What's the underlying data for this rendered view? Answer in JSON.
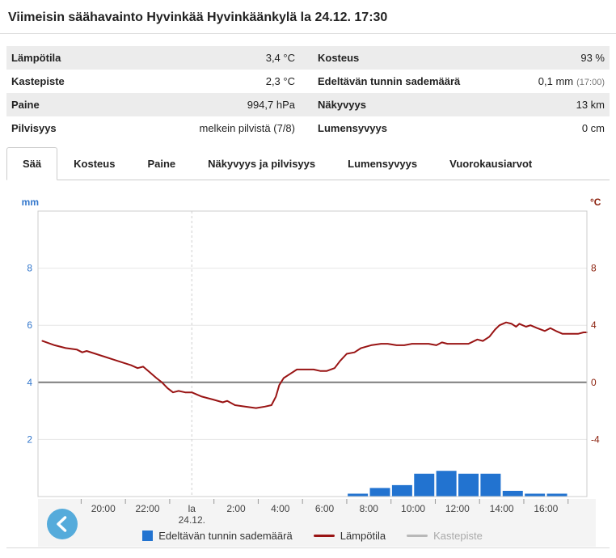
{
  "header": {
    "title": "Viimeisin säähavainto Hyvinkää Hyvinkäänkylä la 24.12. 17:30"
  },
  "observations": {
    "rows": [
      {
        "l1": "Lämpötila",
        "v1": "3,4 °C",
        "l2": "Kosteus",
        "v2": "93 %",
        "v2_note": ""
      },
      {
        "l1": "Kastepiste",
        "v1": "2,3 °C",
        "l2": "Edeltävän tunnin sademäärä",
        "v2": "0,1 mm",
        "v2_note": "(17:00)"
      },
      {
        "l1": "Paine",
        "v1": "994,7 hPa",
        "l2": "Näkyvyys",
        "v2": "13 km",
        "v2_note": ""
      },
      {
        "l1": "Pilvisyys",
        "v1": "melkein pilvistä (7/8)",
        "l2": "Lumensyvyys",
        "v2": "0 cm",
        "v2_note": ""
      }
    ]
  },
  "tabs": [
    {
      "label": "Sää",
      "active": true
    },
    {
      "label": "Kosteus",
      "active": false
    },
    {
      "label": "Paine",
      "active": false
    },
    {
      "label": "Näkyvyys ja pilvisyys",
      "active": false
    },
    {
      "label": "Lumensyvyys",
      "active": false
    },
    {
      "label": "Vuorokausiarvot",
      "active": false
    }
  ],
  "legend": [
    {
      "label": "Edeltävän tunnin sademäärä",
      "swatch": "square",
      "color": "#2273d0",
      "disabled": false
    },
    {
      "label": "Lämpötila",
      "swatch": "line",
      "color": "#991414",
      "disabled": false
    },
    {
      "label": "Kastepiste",
      "swatch": "line",
      "color": "#b8b8b8",
      "disabled": true
    }
  ],
  "colors": {
    "bar_blue": "#2273d0",
    "temp_red": "#991414",
    "dewpoint_gray": "#b8b8b8",
    "axis_left_blue": "#3377cc",
    "axis_right_red": "#8a1e0a",
    "grid": "#e6e6e6",
    "zero_line": "#7d7d7d",
    "midnight_dash": "#cfcfcf",
    "strip_bg": "#f4f4f4",
    "tick_text": "#444",
    "button_blue": "#55abdb"
  },
  "chart_data": {
    "type": "bar+line",
    "title": "",
    "x_axis": {
      "start": 17.05,
      "end": 41.85,
      "note": "t = hours since day-1 00:00; 24 = midnight la 24.12.",
      "ticks": [
        {
          "t": 20,
          "l1": "20:00",
          "l2": ""
        },
        {
          "t": 22,
          "l1": "22:00",
          "l2": ""
        },
        {
          "t": 24,
          "l1": "la",
          "l2": "24.12."
        },
        {
          "t": 26,
          "l1": "2:00",
          "l2": ""
        },
        {
          "t": 28,
          "l1": "4:00",
          "l2": ""
        },
        {
          "t": 30,
          "l1": "6:00",
          "l2": ""
        },
        {
          "t": 32,
          "l1": "8:00",
          "l2": ""
        },
        {
          "t": 34,
          "l1": "10:00",
          "l2": ""
        },
        {
          "t": 36,
          "l1": "12:00",
          "l2": ""
        },
        {
          "t": 38,
          "l1": "14:00",
          "l2": ""
        },
        {
          "t": 40,
          "l1": "16:00",
          "l2": ""
        }
      ],
      "minor_ticks": [
        19,
        21,
        23,
        25,
        27,
        29,
        31,
        33,
        35,
        37,
        39,
        41
      ],
      "midnight_line_t": 24
    },
    "y_left": {
      "label": "mm",
      "min": 0,
      "max": 10,
      "ticks": [
        2,
        4,
        6,
        8
      ]
    },
    "y_right": {
      "label": "°C",
      "min": -8,
      "max": 12,
      "ticks": [
        -4,
        0,
        4,
        8
      ],
      "zero_at": 0
    },
    "series": [
      {
        "name": "Edeltävän tunnin sademäärä",
        "type": "bar",
        "unit": "mm",
        "axis": "left",
        "points": [
          {
            "hour_end": "8:00",
            "t_end": 32,
            "v": 0.1
          },
          {
            "hour_end": "9:00",
            "t_end": 33,
            "v": 0.3
          },
          {
            "hour_end": "10:00",
            "t_end": 34,
            "v": 0.4
          },
          {
            "hour_end": "11:00",
            "t_end": 35,
            "v": 0.8
          },
          {
            "hour_end": "12:00",
            "t_end": 36,
            "v": 0.9
          },
          {
            "hour_end": "13:00",
            "t_end": 37,
            "v": 0.8
          },
          {
            "hour_end": "14:00",
            "t_end": 38,
            "v": 0.8
          },
          {
            "hour_end": "15:00",
            "t_end": 39,
            "v": 0.2
          },
          {
            "hour_end": "16:00",
            "t_end": 40,
            "v": 0.1
          },
          {
            "hour_end": "17:00",
            "t_end": 41,
            "v": 0.1
          }
        ]
      },
      {
        "name": "Lämpötila",
        "type": "line",
        "unit": "°C",
        "axis": "right",
        "points": [
          [
            17.25,
            2.9
          ],
          [
            17.8,
            2.6
          ],
          [
            18.3,
            2.4
          ],
          [
            18.8,
            2.3
          ],
          [
            19.05,
            2.1
          ],
          [
            19.25,
            2.2
          ],
          [
            19.65,
            2.0
          ],
          [
            20.05,
            1.8
          ],
          [
            20.45,
            1.6
          ],
          [
            20.85,
            1.4
          ],
          [
            21.25,
            1.2
          ],
          [
            21.55,
            1.0
          ],
          [
            21.8,
            1.1
          ],
          [
            22.1,
            0.7
          ],
          [
            22.4,
            0.3
          ],
          [
            22.65,
            0.0
          ],
          [
            22.9,
            -0.4
          ],
          [
            23.15,
            -0.7
          ],
          [
            23.4,
            -0.6
          ],
          [
            23.7,
            -0.7
          ],
          [
            24.0,
            -0.7
          ],
          [
            24.45,
            -1.0
          ],
          [
            24.95,
            -1.2
          ],
          [
            25.4,
            -1.4
          ],
          [
            25.6,
            -1.3
          ],
          [
            25.95,
            -1.6
          ],
          [
            26.4,
            -1.7
          ],
          [
            26.9,
            -1.8
          ],
          [
            27.3,
            -1.7
          ],
          [
            27.6,
            -1.6
          ],
          [
            27.8,
            -1.0
          ],
          [
            27.95,
            -0.2
          ],
          [
            28.15,
            0.3
          ],
          [
            28.45,
            0.6
          ],
          [
            28.75,
            0.9
          ],
          [
            29.2,
            0.9
          ],
          [
            29.5,
            0.9
          ],
          [
            29.8,
            0.8
          ],
          [
            30.1,
            0.8
          ],
          [
            30.45,
            1.0
          ],
          [
            30.7,
            1.5
          ],
          [
            31.0,
            2.0
          ],
          [
            31.35,
            2.1
          ],
          [
            31.65,
            2.4
          ],
          [
            32.1,
            2.6
          ],
          [
            32.55,
            2.7
          ],
          [
            32.85,
            2.7
          ],
          [
            33.25,
            2.6
          ],
          [
            33.6,
            2.6
          ],
          [
            33.95,
            2.7
          ],
          [
            34.3,
            2.7
          ],
          [
            34.7,
            2.7
          ],
          [
            35.05,
            2.6
          ],
          [
            35.3,
            2.8
          ],
          [
            35.55,
            2.7
          ],
          [
            35.9,
            2.7
          ],
          [
            36.5,
            2.7
          ],
          [
            36.9,
            3.0
          ],
          [
            37.15,
            2.9
          ],
          [
            37.45,
            3.2
          ],
          [
            37.7,
            3.7
          ],
          [
            37.9,
            4.0
          ],
          [
            38.2,
            4.2
          ],
          [
            38.45,
            4.1
          ],
          [
            38.65,
            3.9
          ],
          [
            38.8,
            4.1
          ],
          [
            39.1,
            3.9
          ],
          [
            39.3,
            4.0
          ],
          [
            39.6,
            3.8
          ],
          [
            39.95,
            3.6
          ],
          [
            40.2,
            3.8
          ],
          [
            40.45,
            3.6
          ],
          [
            40.75,
            3.4
          ],
          [
            41.1,
            3.4
          ],
          [
            41.45,
            3.4
          ],
          [
            41.7,
            3.5
          ],
          [
            41.85,
            3.5
          ]
        ]
      },
      {
        "name": "Kastepiste",
        "type": "line",
        "unit": "°C",
        "axis": "right",
        "disabled": true,
        "points": []
      }
    ]
  }
}
